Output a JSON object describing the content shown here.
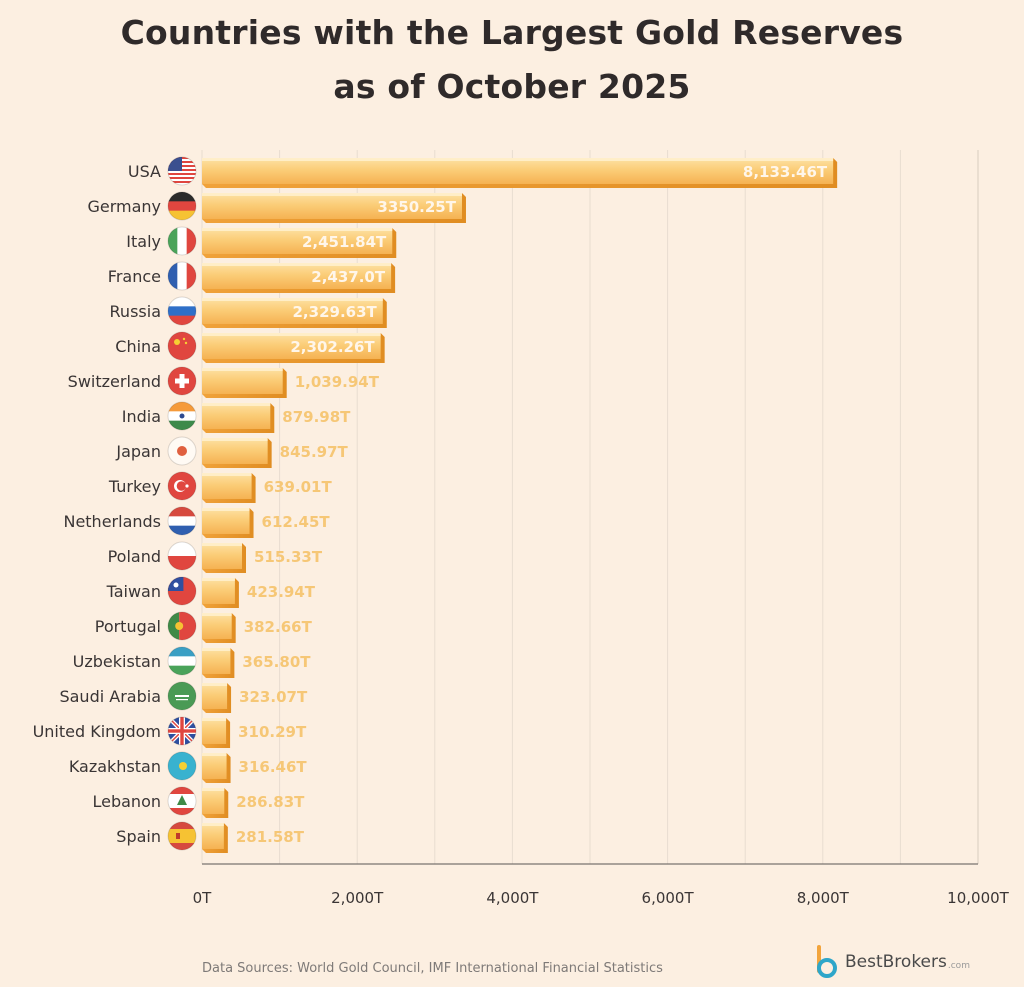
{
  "title": {
    "line1": "Countries with the Largest Gold Reserves",
    "line2": "as of October 2025"
  },
  "footer": {
    "sources": "Data Sources: World Gold Council, IMF International Financial Statistics",
    "brand": "BestBrokers",
    "brand_tld": ".com"
  },
  "colors": {
    "background": "#fcefe1",
    "bar_top": "#fcd58a",
    "bar_bottom": "#f3a83f",
    "bar_label_inside": "#fff6ea",
    "bar_label_outside": "#f6c776",
    "grid": "#e8ddd0",
    "axis": "#7a7370"
  },
  "chart_data": {
    "type": "bar",
    "orientation": "horizontal",
    "categories": [
      "USA",
      "Germany",
      "Italy",
      "France",
      "Russia",
      "China",
      "Switzerland",
      "India",
      "Japan",
      "Turkey",
      "Netherlands",
      "Poland",
      "Taiwan",
      "Portugal",
      "Uzbekistan",
      "Saudi Arabia",
      "United Kingdom",
      "Kazakhstan",
      "Lebanon",
      "Spain"
    ],
    "values": [
      8133.46,
      3350.25,
      2451.84,
      2437.0,
      2329.63,
      2302.26,
      1039.94,
      879.98,
      845.97,
      639.01,
      612.45,
      515.33,
      423.94,
      382.66,
      365.8,
      323.07,
      310.29,
      316.46,
      286.83,
      281.58
    ],
    "value_labels": [
      "8,133.46T",
      "3350.25T",
      "2,451.84T",
      "2,437.0T",
      "2,329.63T",
      "2,302.26T",
      "1,039.94T",
      "879.98T",
      "845.97T",
      "639.01T",
      "612.45T",
      "515.33T",
      "423.94T",
      "382.66T",
      "365.80T",
      "323.07T",
      "310.29T",
      "316.46T",
      "286.83T",
      "281.58T"
    ],
    "flags": [
      "usa-flag",
      "germany-flag",
      "italy-flag",
      "france-flag",
      "russia-flag",
      "china-flag",
      "switzerland-flag",
      "india-flag",
      "japan-flag",
      "turkey-flag",
      "netherlands-flag",
      "poland-flag",
      "taiwan-flag",
      "portugal-flag",
      "uzbekistan-flag",
      "saudi-arabia-flag",
      "united-kingdom-flag",
      "kazakhstan-flag",
      "lebanon-flag",
      "spain-flag"
    ],
    "xlim": [
      0,
      10000
    ],
    "xticks": [
      0,
      2000,
      4000,
      6000,
      8000,
      10000
    ],
    "xtick_labels": [
      "0T",
      "2,000T",
      "4,000T",
      "6,000T",
      "8,000T",
      "10,000T"
    ],
    "grid": true,
    "title": "Countries with the Largest Gold Reserves as of October 2025"
  }
}
